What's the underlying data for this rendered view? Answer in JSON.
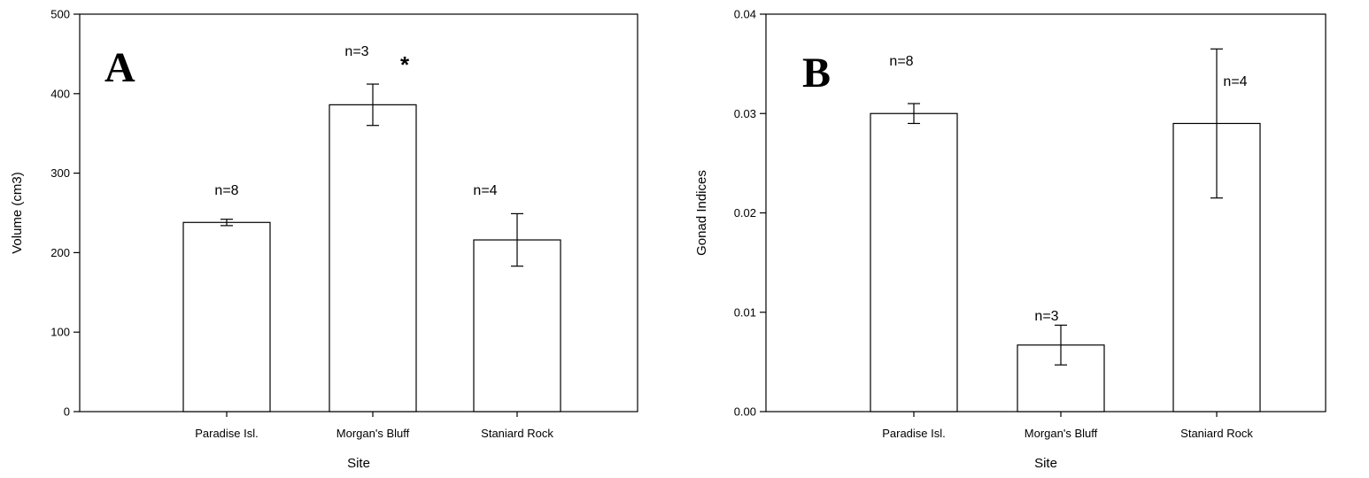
{
  "chart_data": [
    {
      "type": "bar",
      "panel_label": "A",
      "xlabel": "Site",
      "ylabel": "Volume (cm3)",
      "ylim": [
        0,
        500
      ],
      "yticks": [
        "0",
        "100",
        "200",
        "300",
        "400",
        "500"
      ],
      "categories": [
        "Paradise Isl.",
        "Morgan's Bluff",
        "Staniard Rock"
      ],
      "values": [
        238,
        386,
        216
      ],
      "error": [
        4,
        26,
        33
      ],
      "annotations": [
        "n=8",
        "n=3",
        "n=4"
      ],
      "significance": [
        "",
        "*",
        ""
      ]
    },
    {
      "type": "bar",
      "panel_label": "B",
      "xlabel": "Site",
      "ylabel": "Gonad Indices",
      "ylim": [
        0,
        0.04
      ],
      "yticks": [
        "0.00",
        "0.01",
        "0.02",
        "0.03",
        "0.04"
      ],
      "categories": [
        "Paradise Isl.",
        "Morgan's Bluff",
        "Staniard Rock"
      ],
      "values": [
        0.03,
        0.0067,
        0.029
      ],
      "error": [
        0.001,
        0.002,
        0.0075
      ],
      "annotations": [
        "n=8",
        "n=3",
        "n=4"
      ],
      "significance": [
        "",
        "",
        ""
      ]
    }
  ]
}
